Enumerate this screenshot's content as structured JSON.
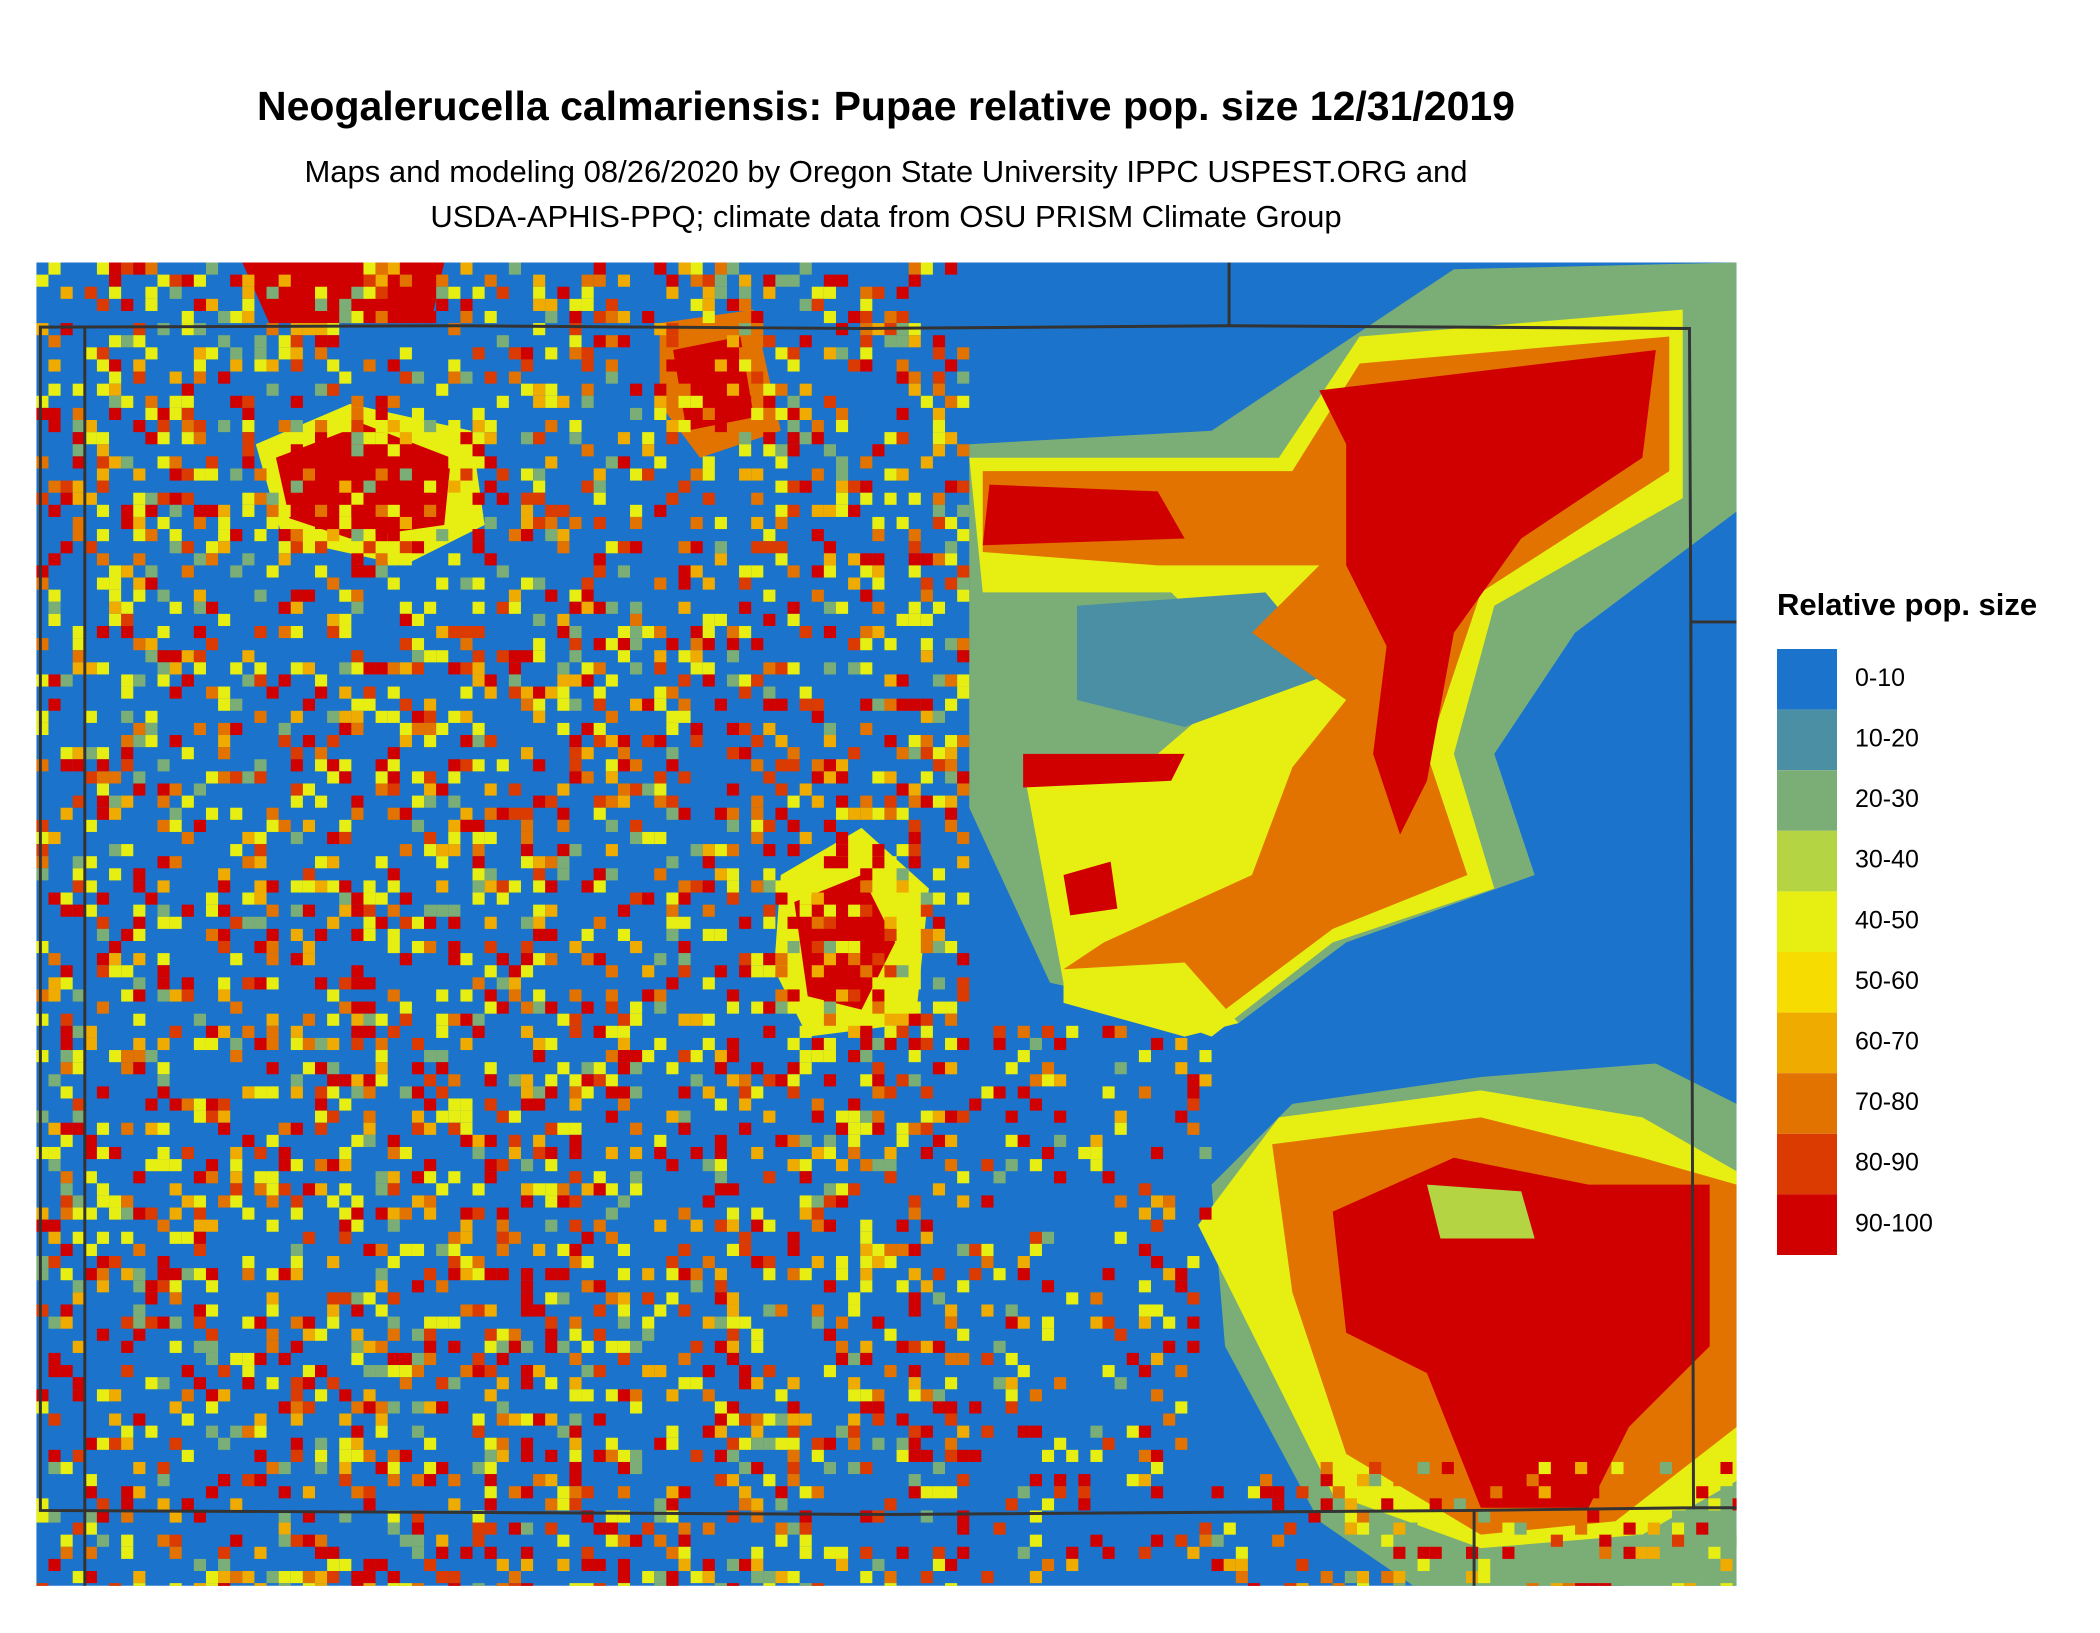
{
  "header": {
    "title": "Neogalerucella calmariensis: Pupae relative pop. size 12/31/2019",
    "subtitle": [
      "Maps and modeling 08/26/2020 by Oregon State University IPPC USPEST.ORG and",
      "USDA-APHIS-PPQ; climate data from OSU PRISM Climate Group"
    ]
  },
  "legend": {
    "title": "Relative pop. size",
    "entries": [
      {
        "label": "0-10",
        "color": "#1b73cb"
      },
      {
        "label": "10-20",
        "color": "#4a8fa3"
      },
      {
        "label": "20-30",
        "color": "#7bae77"
      },
      {
        "label": "30-40",
        "color": "#b5d443"
      },
      {
        "label": "40-50",
        "color": "#e6ee12"
      },
      {
        "label": "50-60",
        "color": "#f6dc00"
      },
      {
        "label": "60-70",
        "color": "#efab00"
      },
      {
        "label": "70-80",
        "color": "#e27300"
      },
      {
        "label": "80-90",
        "color": "#db3b00"
      },
      {
        "label": "90-100",
        "color": "#d00000"
      }
    ]
  }
}
